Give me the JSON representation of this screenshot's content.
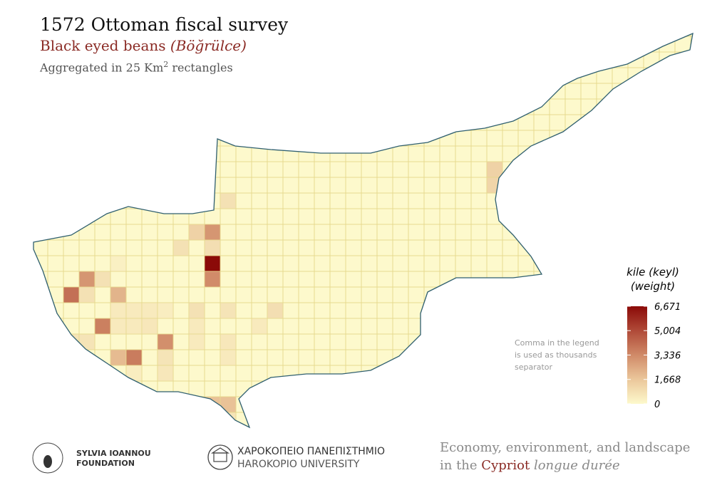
{
  "header": {
    "title": "1572 Ottoman fiscal survey",
    "subtitle": {
      "text": "Black eyed beans",
      "italic": "(Böğrülce)"
    },
    "note": {
      "before": "Aggregated in 25 Km",
      "sup": "2",
      "after": "rectangles"
    }
  },
  "legend": {
    "title": [
      "kile (keyl)",
      "(weight)"
    ],
    "ticks": [
      {
        "value": 0,
        "label": "0"
      },
      {
        "value": 1668,
        "label": "1,668"
      },
      {
        "value": 3336,
        "label": "3,336"
      },
      {
        "value": 5004,
        "label": "5,004"
      },
      {
        "value": 6671,
        "label": "6,671"
      }
    ],
    "colors": [
      "#fdf9cc",
      "#ebc79b",
      "#d08a68",
      "#b04a38",
      "#8b0a08"
    ]
  },
  "cells": [
    {
      "col": 12,
      "row": 10,
      "value": 800
    },
    {
      "col": 10,
      "row": 12,
      "value": 1300
    },
    {
      "col": 11,
      "row": 12,
      "value": 3000
    },
    {
      "col": 9,
      "row": 13,
      "value": 800
    },
    {
      "col": 11,
      "row": 13,
      "value": 900
    },
    {
      "col": 11,
      "row": 14,
      "value": 6671
    },
    {
      "col": 5,
      "row": 14,
      "value": 300
    },
    {
      "col": 3,
      "row": 15,
      "value": 3000
    },
    {
      "col": 4,
      "row": 15,
      "value": 800
    },
    {
      "col": 11,
      "row": 15,
      "value": 3300
    },
    {
      "col": 2,
      "row": 16,
      "value": 4000
    },
    {
      "col": 3,
      "row": 16,
      "value": 800
    },
    {
      "col": 5,
      "row": 16,
      "value": 2200
    },
    {
      "col": 5,
      "row": 17,
      "value": 500
    },
    {
      "col": 6,
      "row": 17,
      "value": 500
    },
    {
      "col": 7,
      "row": 17,
      "value": 500
    },
    {
      "col": 8,
      "row": 17,
      "value": 400
    },
    {
      "col": 10,
      "row": 17,
      "value": 800
    },
    {
      "col": 12,
      "row": 17,
      "value": 700
    },
    {
      "col": 15,
      "row": 17,
      "value": 900
    },
    {
      "col": 4,
      "row": 18,
      "value": 3600
    },
    {
      "col": 5,
      "row": 18,
      "value": 500
    },
    {
      "col": 6,
      "row": 18,
      "value": 500
    },
    {
      "col": 7,
      "row": 18,
      "value": 600
    },
    {
      "col": 10,
      "row": 18,
      "value": 500
    },
    {
      "col": 14,
      "row": 18,
      "value": 500
    },
    {
      "col": 2,
      "row": 19,
      "value": 700
    },
    {
      "col": 3,
      "row": 19,
      "value": 700
    },
    {
      "col": 8,
      "row": 19,
      "value": 3200
    },
    {
      "col": 10,
      "row": 19,
      "value": 500
    },
    {
      "col": 12,
      "row": 19,
      "value": 600
    },
    {
      "col": 5,
      "row": 20,
      "value": 2000
    },
    {
      "col": 6,
      "row": 20,
      "value": 3700
    },
    {
      "col": 8,
      "row": 20,
      "value": 700
    },
    {
      "col": 12,
      "row": 20,
      "value": 500
    },
    {
      "col": 6,
      "row": 21,
      "value": 400
    },
    {
      "col": 8,
      "row": 21,
      "value": 600
    },
    {
      "col": 11,
      "row": 23,
      "value": 1800
    },
    {
      "col": 12,
      "row": 23,
      "value": 1800
    },
    {
      "col": 12,
      "row": 24,
      "value": 700
    },
    {
      "col": 29,
      "row": 8,
      "value": 1300
    },
    {
      "col": 29,
      "row": 9,
      "value": 1200
    }
  ],
  "footnote": [
    "Comma in the legend",
    "is used as thousands",
    "separator"
  ],
  "logos": {
    "foundation": [
      "SYLVIA IOANNOU",
      "FOUNDATION"
    ],
    "university": [
      "ΧΑΡΟΚΟΠΕΙΟ ΠΑΝΕΠΙΣΤΗΜΙΟ",
      "HAROKOPIO UNIVERSITY"
    ]
  },
  "tagline": {
    "line1": "Economy, environment, and landscape",
    "in": "in the",
    "place": "Cypriot",
    "phrase": "longue durée"
  }
}
